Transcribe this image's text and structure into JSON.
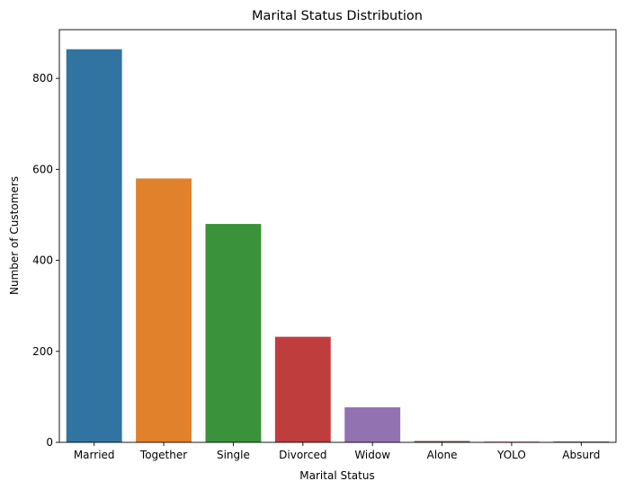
{
  "chart_data": {
    "type": "bar",
    "title": "Marital Status Distribution",
    "xlabel": "Marital Status",
    "ylabel": "Number of Customers",
    "categories": [
      "Married",
      "Together",
      "Single",
      "Divorced",
      "Widow",
      "Alone",
      "YOLO",
      "Absurd"
    ],
    "values": [
      864,
      580,
      480,
      232,
      77,
      3,
      2,
      2
    ],
    "colors": [
      "#3274a1",
      "#e1812c",
      "#3a923a",
      "#c03d3e",
      "#9372b2",
      "#845b53",
      "#d684bd",
      "#7f7f7f"
    ],
    "ylim": [
      0,
      907
    ],
    "yticks": [
      0,
      200,
      400,
      600,
      800
    ],
    "ytick_labels": [
      "0",
      "200",
      "400",
      "600",
      "800"
    ],
    "grid": false,
    "legend": "none"
  }
}
